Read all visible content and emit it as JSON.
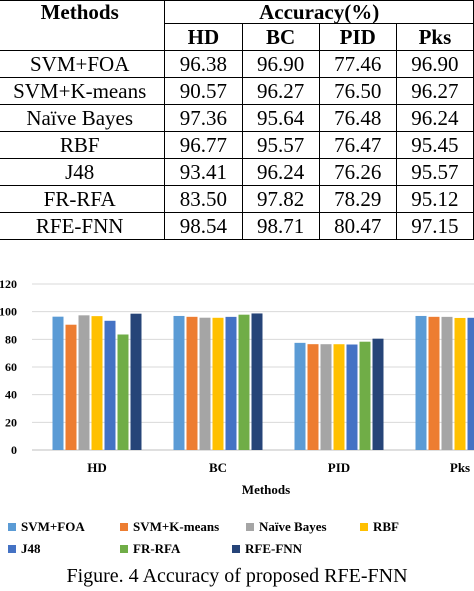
{
  "table": {
    "header_methods": "Methods",
    "header_accuracy": "Accuracy(%)",
    "columns": [
      "HD",
      "BC",
      "PID",
      "Pks"
    ],
    "rows": [
      {
        "method": "SVM+FOA",
        "values": [
          "96.38",
          "96.90",
          "77.46",
          "96.90"
        ]
      },
      {
        "method": "SVM+K-means",
        "values": [
          "90.57",
          "96.27",
          "76.50",
          "96.27"
        ]
      },
      {
        "method": "Naïve Bayes",
        "values": [
          "97.36",
          "95.64",
          "76.48",
          "96.24"
        ]
      },
      {
        "method": "RBF",
        "values": [
          "96.77",
          "95.57",
          "76.47",
          "95.45"
        ]
      },
      {
        "method": "J48",
        "values": [
          "93.41",
          "96.24",
          "76.26",
          "95.57"
        ]
      },
      {
        "method": "FR-RFA",
        "values": [
          "83.50",
          "97.82",
          "78.29",
          "95.12"
        ]
      },
      {
        "method": "RFE-FNN",
        "values": [
          "98.54",
          "98.71",
          "80.47",
          "97.15"
        ]
      }
    ]
  },
  "chart_data": {
    "type": "bar",
    "categories": [
      "HD",
      "BC",
      "PID",
      "Pks"
    ],
    "xlabel": "Methods",
    "ylabel": "",
    "ylim": [
      0,
      120
    ],
    "yticks": [
      0,
      20,
      40,
      60,
      80,
      100,
      120
    ],
    "ytick_labels": [
      "0",
      "20",
      "40",
      "60",
      "80",
      "100",
      "120"
    ],
    "grid": true,
    "legend_position": "bottom",
    "series": [
      {
        "name": "SVM+FOA",
        "color": "#5b9bd5",
        "values": [
          96.38,
          96.9,
          77.46,
          96.9
        ]
      },
      {
        "name": "SVM+K-means",
        "color": "#ed7d31",
        "values": [
          90.57,
          96.27,
          76.5,
          96.27
        ]
      },
      {
        "name": "Naïve Bayes",
        "color": "#a5a5a5",
        "values": [
          97.36,
          95.64,
          76.48,
          96.24
        ]
      },
      {
        "name": "RBF",
        "color": "#ffc000",
        "values": [
          96.77,
          95.57,
          76.47,
          95.45
        ]
      },
      {
        "name": "J48",
        "color": "#4472c4",
        "values": [
          93.41,
          96.24,
          76.26,
          95.57
        ]
      },
      {
        "name": "FR-RFA",
        "color": "#70ad47",
        "values": [
          83.5,
          97.82,
          78.29,
          95.12
        ]
      },
      {
        "name": "RFE-FNN",
        "color": "#264478",
        "values": [
          98.54,
          98.71,
          80.47,
          97.15
        ]
      }
    ]
  },
  "caption": "Figure. 4 Accuracy of proposed RFE-FNN"
}
